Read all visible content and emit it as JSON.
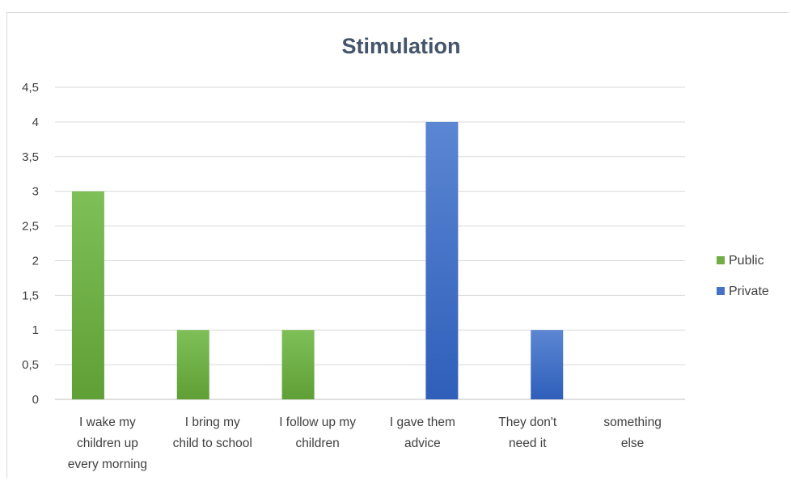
{
  "chart_data": {
    "type": "bar",
    "title": "Stimulation",
    "xlabel": "",
    "ylabel": "",
    "ylim": [
      0,
      4.5
    ],
    "yticks": [
      "0",
      "0,5",
      "1",
      "1,5",
      "2",
      "2,5",
      "3",
      "3,5",
      "4",
      "4,5"
    ],
    "categories": [
      [
        "I wake my",
        "children up",
        "every morning"
      ],
      [
        "I bring my",
        "child to school"
      ],
      [
        "I follow up my",
        "children"
      ],
      [
        "I gave them",
        "advice"
      ],
      [
        "They don't",
        "need it"
      ],
      [
        "something",
        "else"
      ]
    ],
    "series": [
      {
        "name": "Public",
        "color": "#70ad47",
        "values": [
          3,
          1,
          1,
          0,
          0,
          0
        ]
      },
      {
        "name": "Private",
        "color": "#4472c4",
        "values": [
          0,
          0,
          0,
          4,
          1,
          0
        ]
      }
    ],
    "grid": true,
    "legend": "right"
  }
}
